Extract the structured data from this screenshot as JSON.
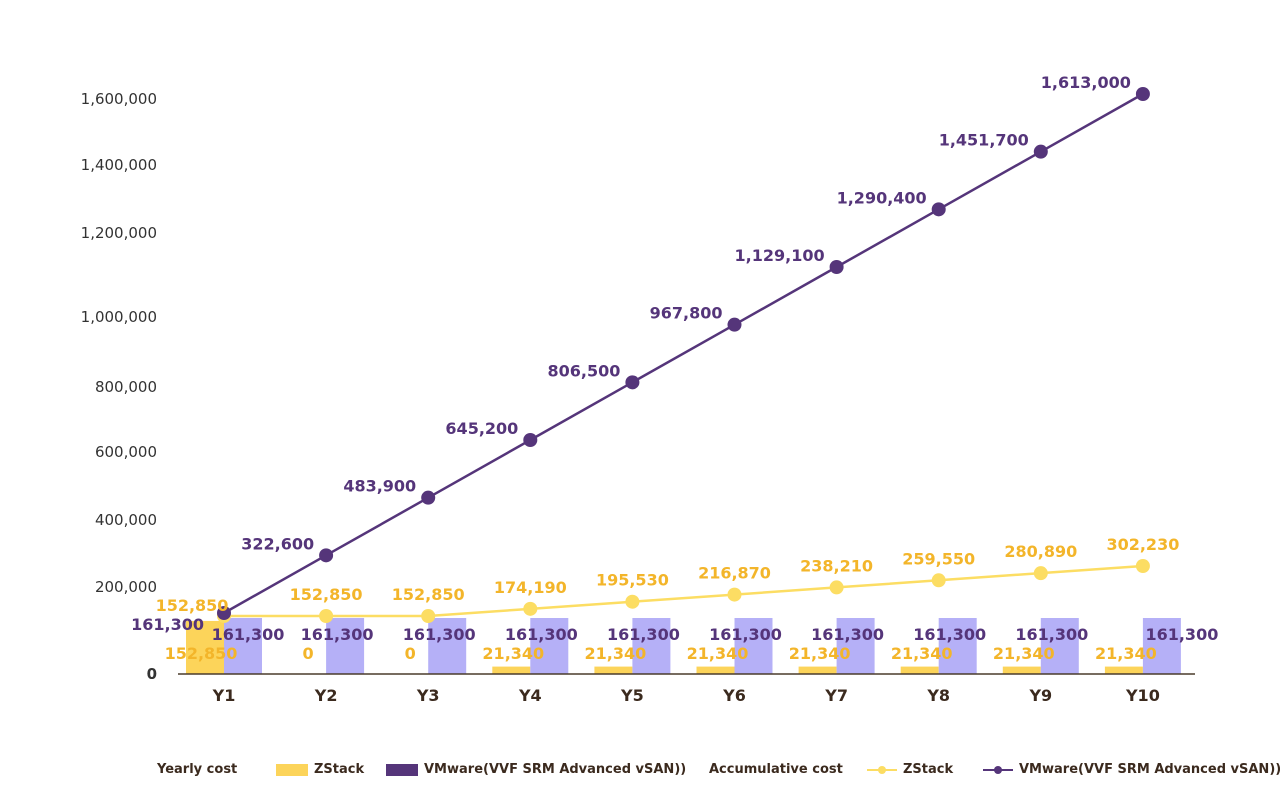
{
  "chart_data": {
    "type": "bar+line",
    "categories": [
      "Y1",
      "Y2",
      "Y3",
      "Y4",
      "Y5",
      "Y6",
      "Y7",
      "Y8",
      "Y9",
      "Y10"
    ],
    "ylim": [
      0,
      1600000
    ],
    "yticks": [
      "0",
      "200,000",
      "400,000",
      "600,000",
      "800,000",
      "1,000,000",
      "1,200,000",
      "1,400,000",
      "1,600,000"
    ],
    "ytick_values": [
      0,
      200000,
      400000,
      600000,
      800000,
      1000000,
      1200000,
      1400000,
      1600000
    ],
    "grid": false,
    "legend_position": "bottom",
    "colors": {
      "zstack_bar": "#fcd45a",
      "vmware_bar": "#b5b0f7",
      "zstack_line": "#fcdd63",
      "vmware_line": "#55357a",
      "zstack_label": "#f3b52a",
      "vmware_label": "#55357a"
    },
    "yearly_cost": {
      "group_label": "Yearly cost",
      "series": [
        {
          "name": "ZStack",
          "values": [
            152850,
            0,
            0,
            21340,
            21340,
            21340,
            21340,
            21340,
            21340,
            21340
          ],
          "labels": [
            "152,850",
            "0",
            "0",
            "21,340",
            "21,340",
            "21,340",
            "21,340",
            "21,340",
            "21,340",
            "21,340"
          ]
        },
        {
          "name": "VMware(VVF SRM Advanced vSAN))",
          "values": [
            161300,
            161300,
            161300,
            161300,
            161300,
            161300,
            161300,
            161300,
            161300,
            161300
          ],
          "labels": [
            "161,300",
            "161,300",
            "161,300",
            "161,300",
            "161,300",
            "161,300",
            "161,300",
            "161,300",
            "161,300",
            "161,300"
          ]
        }
      ]
    },
    "accumulative_cost": {
      "group_label": "Accumulative cost",
      "series": [
        {
          "name": "ZStack",
          "values": [
            152850,
            152850,
            152850,
            174190,
            195530,
            216870,
            238210,
            259550,
            280890,
            302230
          ],
          "labels": [
            "152,850",
            "152,850",
            "152,850",
            "174,190",
            "195,530",
            "216,870",
            "238,210",
            "259,550",
            "280,890",
            "302,230"
          ]
        },
        {
          "name": "VMware(VVF SRM Advanced vSAN))",
          "values": [
            161300,
            322600,
            483900,
            645200,
            806500,
            967800,
            1129100,
            1290400,
            1451700,
            1613000
          ],
          "labels": [
            "161,300",
            "322,600",
            "483,900",
            "645,200",
            "806,500",
            "967,800",
            "1,129,100",
            "1,290,400",
            "1,451,700",
            "1,613,000"
          ]
        }
      ]
    }
  }
}
